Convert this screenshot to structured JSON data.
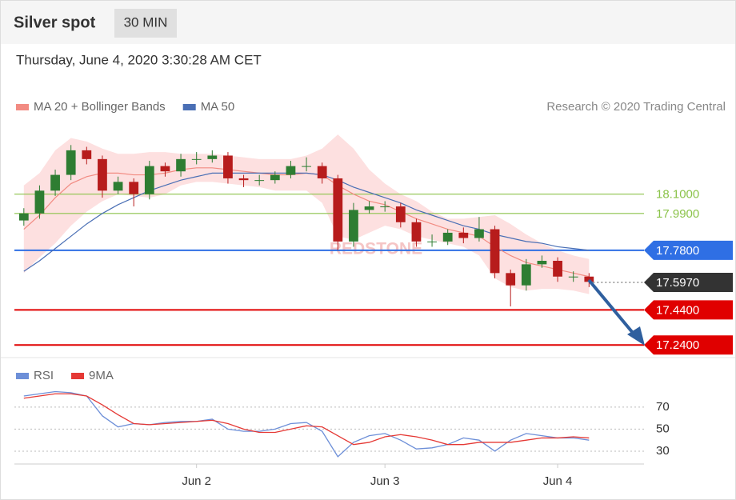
{
  "header": {
    "title": "Silver spot",
    "interval": "30 MIN",
    "timestamp": "Thursday, June 4, 2020 3:30:28 AM CET",
    "credit": "Research © 2020 Trading Central",
    "watermark": "REDSTONE"
  },
  "chart_data": [
    {
      "type": "candlestick",
      "categories": [
        null,
        null,
        null,
        null,
        null,
        null,
        null,
        null,
        null,
        null,
        null,
        "Jun 2",
        null,
        null,
        null,
        null,
        null,
        null,
        null,
        null,
        null,
        null,
        null,
        "Jun 3",
        null,
        null,
        null,
        null,
        null,
        null,
        null,
        null,
        null,
        null,
        "Jun 4",
        null,
        null,
        null,
        null,
        null
      ],
      "open": [
        17.95,
        17.99,
        18.12,
        18.21,
        18.35,
        18.3,
        18.12,
        18.17,
        18.1,
        18.26,
        18.23,
        18.3,
        18.3,
        18.32,
        18.19,
        18.18,
        18.18,
        18.21,
        18.26,
        18.26,
        18.19,
        17.83,
        18.01,
        18.03,
        18.03,
        17.94,
        17.83,
        17.83,
        17.88,
        17.85,
        17.9,
        17.65,
        17.58,
        17.7,
        17.72,
        17.63,
        17.63,
        null,
        null,
        null
      ],
      "high": [
        18.02,
        18.15,
        18.24,
        18.38,
        18.37,
        18.32,
        18.2,
        18.19,
        18.29,
        18.28,
        18.33,
        18.34,
        18.35,
        18.34,
        18.21,
        18.21,
        18.23,
        18.29,
        18.31,
        18.28,
        18.21,
        18.05,
        18.06,
        18.06,
        18.05,
        17.96,
        17.87,
        17.9,
        17.91,
        17.97,
        17.92,
        17.67,
        17.73,
        17.75,
        17.74,
        17.66,
        17.65,
        null,
        null,
        null
      ],
      "low": [
        17.92,
        17.96,
        18.09,
        18.18,
        18.27,
        18.08,
        18.1,
        18.03,
        18.07,
        18.2,
        18.2,
        18.27,
        18.28,
        18.16,
        18.14,
        18.15,
        18.16,
        18.19,
        18.23,
        18.16,
        17.78,
        17.8,
        17.99,
        18.0,
        17.91,
        17.8,
        17.8,
        17.81,
        17.82,
        17.83,
        17.62,
        17.46,
        17.55,
        17.68,
        17.6,
        17.6,
        17.57,
        null,
        null,
        null
      ],
      "close": [
        17.99,
        18.12,
        18.21,
        18.35,
        18.3,
        18.12,
        18.17,
        18.1,
        18.26,
        18.23,
        18.3,
        18.3,
        18.32,
        18.19,
        18.18,
        18.18,
        18.21,
        18.26,
        18.26,
        18.19,
        17.83,
        18.01,
        18.03,
        18.03,
        17.94,
        17.83,
        17.83,
        17.88,
        17.85,
        17.9,
        17.65,
        17.58,
        17.7,
        17.72,
        17.63,
        17.63,
        17.6,
        null,
        null,
        null
      ],
      "up_color": "#2e7d32",
      "down_color": "#b71c1c",
      "series": [
        {
          "name": "MA 20 + Bollinger Bands",
          "color": "#f28b82",
          "values": [
            17.9,
            17.98,
            18.08,
            18.16,
            18.2,
            18.22,
            18.22,
            18.21,
            18.21,
            18.22,
            18.24,
            18.25,
            18.25,
            18.24,
            18.23,
            18.22,
            18.21,
            18.21,
            18.22,
            18.21,
            18.15,
            18.1,
            18.06,
            18.04,
            18.0,
            17.96,
            17.93,
            17.9,
            17.88,
            17.86,
            17.8,
            17.75,
            17.71,
            17.69,
            17.67,
            17.65,
            17.63,
            null,
            null,
            null
          ],
          "band": {
            "color": "#fcd6d6",
            "upper": [
              18.15,
              18.22,
              18.35,
              18.42,
              18.4,
              18.36,
              18.33,
              18.33,
              18.34,
              18.34,
              18.33,
              18.33,
              18.33,
              18.32,
              18.31,
              18.3,
              18.3,
              18.3,
              18.32,
              18.36,
              18.44,
              18.36,
              18.24,
              18.16,
              18.1,
              18.06,
              18.0,
              17.96,
              17.96,
              17.97,
              17.98,
              17.93,
              17.87,
              17.82,
              17.78,
              17.75,
              17.73,
              null,
              null,
              null
            ],
            "lower": [
              17.65,
              17.74,
              17.82,
              17.92,
              18.0,
              18.06,
              18.1,
              18.09,
              18.08,
              18.1,
              18.15,
              18.17,
              18.17,
              18.16,
              18.15,
              18.14,
              18.12,
              18.12,
              18.12,
              18.05,
              17.86,
              17.84,
              17.88,
              17.92,
              17.9,
              17.86,
              17.84,
              17.82,
              17.8,
              17.75,
              17.62,
              17.57,
              17.55,
              17.56,
              17.56,
              17.55,
              17.53,
              null,
              null,
              null
            ]
          }
        },
        {
          "name": "MA 50",
          "color": "#4a6fb5",
          "values": [
            17.66,
            17.72,
            17.79,
            17.86,
            17.93,
            17.99,
            18.04,
            18.08,
            18.12,
            18.15,
            18.18,
            18.2,
            18.22,
            18.22,
            18.22,
            18.22,
            18.22,
            18.22,
            18.22,
            18.21,
            18.18,
            18.14,
            18.11,
            18.08,
            18.05,
            18.01,
            17.98,
            17.95,
            17.92,
            17.9,
            17.87,
            17.85,
            17.83,
            17.82,
            17.8,
            17.79,
            17.78,
            null,
            null,
            null
          ]
        }
      ],
      "ylim": [
        17.2,
        18.5
      ],
      "levels": [
        {
          "value": 18.1,
          "label": "18.1000",
          "color": "#8bc34a",
          "label_box": false,
          "dotted": false
        },
        {
          "value": 17.99,
          "label": "17.9900",
          "color": "#8bc34a",
          "label_box": false,
          "dotted": false
        },
        {
          "value": 17.78,
          "label": "17.7800",
          "color": "#2f6fe4",
          "label_box": true,
          "dotted": false
        },
        {
          "value": 17.597,
          "label": "17.5970",
          "color": "#333333",
          "label_box": true,
          "dotted": true
        },
        {
          "value": 17.44,
          "label": "17.4400",
          "color": "#e00000",
          "label_box": true,
          "dotted": false
        },
        {
          "value": 17.24,
          "label": "17.2400",
          "color": "#e00000",
          "label_box": true,
          "dotted": false
        }
      ]
    },
    {
      "type": "line",
      "series": [
        {
          "name": "RSI",
          "color": "#6d8fd8",
          "values": [
            80,
            82,
            84,
            83,
            80,
            62,
            52,
            55,
            54,
            56,
            57,
            57,
            59,
            50,
            48,
            48,
            50,
            55,
            56,
            48,
            25,
            38,
            44,
            46,
            40,
            32,
            33,
            36,
            42,
            40,
            30,
            40,
            46,
            44,
            42,
            42,
            40,
            null,
            null,
            null
          ]
        },
        {
          "name": "9MA",
          "color": "#e53935",
          "values": [
            78,
            80,
            82,
            82,
            80,
            72,
            63,
            55,
            54,
            55,
            56,
            57,
            58,
            55,
            50,
            47,
            47,
            50,
            53,
            52,
            44,
            36,
            38,
            43,
            45,
            43,
            40,
            36,
            36,
            38,
            38,
            38,
            40,
            42,
            42,
            43,
            42,
            null,
            null,
            null
          ]
        }
      ],
      "ylim": [
        18,
        88
      ],
      "yticks": [
        30,
        50,
        70
      ],
      "grid": true
    }
  ]
}
